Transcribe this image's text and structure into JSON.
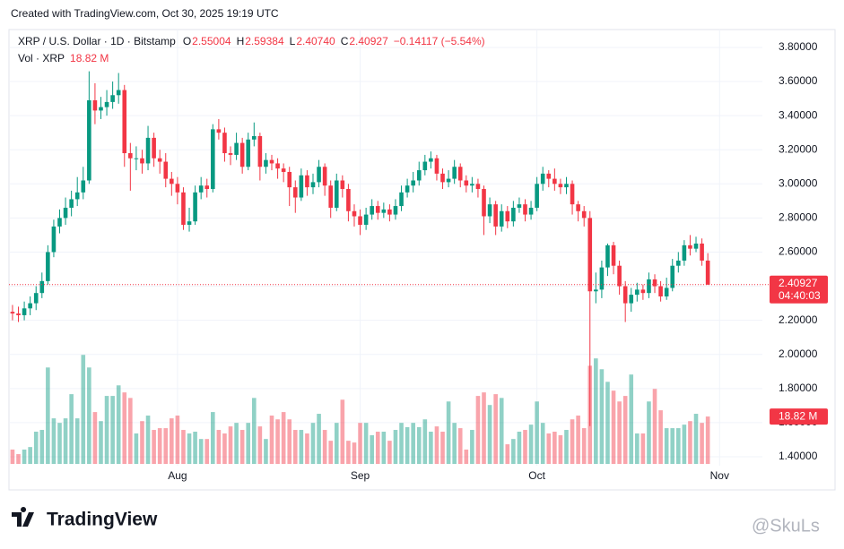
{
  "chart_data": {
    "type": "candlestick",
    "created": "Created with TradingView.com, Oct 30, 2025 19:19 UTC",
    "title": "XRP / U.S. Dollar · 1D · Bitstamp",
    "ohlc_labels": [
      {
        "key": "O",
        "value": "2.55004"
      },
      {
        "key": "H",
        "value": "2.59384"
      },
      {
        "key": "L",
        "value": "2.40740"
      },
      {
        "key": "C",
        "value": "2.40927"
      }
    ],
    "change": "−0.14117 (−5.54%)",
    "volume_title": "Vol · XRP",
    "volume_label": "18.82 M",
    "price_label": "2.40927",
    "countdown": "04:40:03",
    "brand": "TradingView",
    "watermark": "@SkuLs",
    "up_color": "#089981",
    "down_color": "#f23645",
    "grid": true,
    "ylim": [
      1.358,
      3.868
    ],
    "yticks": [
      {
        "value": 1.4,
        "label": "1.40000"
      },
      {
        "value": 1.6,
        "label": "1.60000"
      },
      {
        "value": 1.8,
        "label": "1.80000"
      },
      {
        "value": 2.0,
        "label": "2.00000"
      },
      {
        "value": 2.2,
        "label": "2.20000"
      },
      {
        "value": 2.4,
        "label": "2.40000"
      },
      {
        "value": 2.6,
        "label": "2.60000"
      },
      {
        "value": 2.8,
        "label": "2.80000"
      },
      {
        "value": 3.0,
        "label": "3.00000"
      },
      {
        "value": 3.2,
        "label": "3.20000"
      },
      {
        "value": 3.4,
        "label": "3.40000"
      },
      {
        "value": 3.6,
        "label": "3.60000"
      },
      {
        "value": 3.8,
        "label": "3.80000"
      }
    ],
    "xlim": [
      -0.6,
      126.5
    ],
    "xticks": [
      {
        "value": 28,
        "label": "Aug"
      },
      {
        "value": 59,
        "label": "Sep"
      },
      {
        "value": 89,
        "label": "Oct"
      },
      {
        "value": 120,
        "label": "Nov"
      }
    ],
    "vol_ylim": [
      0,
      170
    ],
    "open": [
      2.25,
      2.24,
      2.23,
      2.27,
      2.3,
      2.36,
      2.43,
      2.6,
      2.75,
      2.8,
      2.86,
      2.91,
      2.95,
      3.02,
      3.49,
      3.43,
      3.45,
      3.48,
      3.52,
      3.55,
      3.18,
      3.15,
      3.15,
      3.12,
      3.27,
      3.15,
      3.13,
      3.03,
      3.0,
      2.95,
      2.76,
      2.78,
      2.95,
      2.99,
      2.97,
      3.32,
      3.3,
      3.18,
      3.17,
      3.24,
      3.1,
      3.26,
      3.28,
      3.1,
      3.14,
      3.12,
      3.09,
      3.07,
      2.98,
      2.92,
      3.05,
      2.98,
      3.01,
      3.1,
      2.99,
      2.86,
      3.02,
      2.97,
      2.84,
      2.81,
      2.76,
      2.82,
      2.87,
      2.83,
      2.85,
      2.82,
      2.87,
      2.95,
      2.99,
      3.02,
      3.08,
      3.13,
      3.15,
      3.06,
      3.01,
      3.03,
      3.1,
      3.02,
      2.99,
      3.0,
      2.97,
      2.81,
      2.88,
      2.75,
      2.84,
      2.78,
      2.86,
      2.88,
      2.82,
      2.86,
      3.0,
      3.06,
      3.03,
      3.0,
      2.98,
      3.0,
      2.88,
      2.84,
      2.8,
      2.37,
      2.38,
      2.51,
      2.64,
      2.52,
      2.4,
      2.3,
      2.35,
      2.38,
      2.36,
      2.44,
      2.4,
      2.34,
      2.39,
      2.52,
      2.55,
      2.64,
      2.62,
      2.65,
      2.55004
    ],
    "high": [
      2.29,
      2.28,
      2.31,
      2.34,
      2.4,
      2.48,
      2.64,
      2.79,
      2.85,
      2.92,
      2.96,
      3.04,
      3.1,
      3.66,
      3.59,
      3.51,
      3.55,
      3.6,
      3.65,
      3.58,
      3.24,
      3.22,
      3.2,
      3.34,
      3.3,
      3.2,
      3.18,
      3.07,
      3.04,
      2.98,
      2.86,
      2.99,
      3.04,
      3.03,
      3.35,
      3.38,
      3.33,
      3.22,
      3.3,
      3.27,
      3.3,
      3.36,
      3.3,
      3.18,
      3.17,
      3.15,
      3.12,
      3.1,
      3.02,
      3.09,
      3.08,
      3.06,
      3.14,
      3.12,
      3.02,
      3.06,
      3.05,
      3.0,
      2.88,
      2.85,
      2.86,
      2.91,
      2.9,
      2.89,
      2.88,
      2.91,
      2.99,
      3.03,
      3.07,
      3.13,
      3.17,
      3.19,
      3.17,
      3.09,
      3.08,
      3.14,
      3.12,
      3.05,
      3.04,
      3.03,
      2.99,
      2.92,
      2.9,
      2.88,
      2.87,
      2.9,
      2.92,
      2.91,
      2.9,
      3.04,
      3.1,
      3.08,
      3.09,
      3.03,
      3.04,
      3.02,
      2.9,
      2.87,
      2.84,
      2.48,
      2.55,
      2.65,
      2.66,
      2.55,
      2.43,
      2.39,
      2.42,
      2.41,
      2.48,
      2.47,
      2.43,
      2.45,
      2.56,
      2.6,
      2.67,
      2.7,
      2.69,
      2.68,
      2.59384
    ],
    "low": [
      2.2,
      2.19,
      2.2,
      2.23,
      2.26,
      2.33,
      2.41,
      2.57,
      2.71,
      2.76,
      2.81,
      2.87,
      2.91,
      3.0,
      3.35,
      3.38,
      3.4,
      3.44,
      3.47,
      3.1,
      2.96,
      3.08,
      3.06,
      3.08,
      3.1,
      3.06,
      2.98,
      2.93,
      2.88,
      2.73,
      2.72,
      2.76,
      2.91,
      2.92,
      2.95,
      3.26,
      3.13,
      3.11,
      3.14,
      3.06,
      3.08,
      3.22,
      3.02,
      3.06,
      3.08,
      3.03,
      3.01,
      2.87,
      2.83,
      2.9,
      2.93,
      2.94,
      2.98,
      2.93,
      2.8,
      2.84,
      2.92,
      2.78,
      2.75,
      2.7,
      2.73,
      2.79,
      2.79,
      2.8,
      2.78,
      2.79,
      2.84,
      2.92,
      2.95,
      2.99,
      3.05,
      3.09,
      3.02,
      2.97,
      2.98,
      3.0,
      2.98,
      2.95,
      2.95,
      2.92,
      2.7,
      2.77,
      2.7,
      2.72,
      2.74,
      2.75,
      2.83,
      2.78,
      2.79,
      2.84,
      2.96,
      2.98,
      2.96,
      2.94,
      2.94,
      2.82,
      2.78,
      2.75,
      1.58,
      2.3,
      2.33,
      2.46,
      2.47,
      2.35,
      2.19,
      2.25,
      2.31,
      2.32,
      2.33,
      2.36,
      2.31,
      2.32,
      2.37,
      2.48,
      2.52,
      2.58,
      2.6,
      2.52,
      2.4074
    ],
    "close": [
      2.24,
      2.23,
      2.27,
      2.3,
      2.36,
      2.43,
      2.6,
      2.75,
      2.8,
      2.86,
      2.91,
      2.95,
      3.02,
      3.49,
      3.43,
      3.45,
      3.48,
      3.52,
      3.55,
      3.18,
      3.15,
      3.15,
      3.12,
      3.27,
      3.15,
      3.13,
      3.03,
      3.0,
      2.95,
      2.76,
      2.78,
      2.95,
      2.99,
      2.97,
      3.32,
      3.3,
      3.18,
      3.17,
      3.24,
      3.1,
      3.26,
      3.28,
      3.1,
      3.14,
      3.12,
      3.09,
      3.07,
      2.98,
      2.92,
      3.05,
      2.98,
      3.01,
      3.1,
      2.99,
      2.86,
      3.02,
      2.97,
      2.84,
      2.81,
      2.76,
      2.82,
      2.87,
      2.83,
      2.85,
      2.82,
      2.87,
      2.95,
      2.99,
      3.02,
      3.08,
      3.13,
      3.15,
      3.06,
      3.01,
      3.03,
      3.1,
      3.02,
      2.99,
      3.0,
      2.97,
      2.81,
      2.88,
      2.75,
      2.84,
      2.78,
      2.86,
      2.88,
      2.82,
      2.86,
      3.0,
      3.06,
      3.03,
      3.0,
      2.98,
      3.0,
      2.88,
      2.84,
      2.8,
      2.37,
      2.38,
      2.51,
      2.64,
      2.52,
      2.4,
      2.3,
      2.35,
      2.38,
      2.36,
      2.44,
      2.4,
      2.34,
      2.39,
      2.52,
      2.55,
      2.64,
      2.62,
      2.65,
      2.55004,
      2.40927
    ],
    "volume": [
      5.7,
      3.9,
      5.7,
      6.7,
      12.8,
      13.5,
      38.3,
      18.1,
      16.3,
      18.1,
      27.7,
      18.1,
      43.3,
      38.3,
      20.6,
      17.0,
      27.0,
      27.0,
      31.2,
      28.4,
      26.2,
      12.1,
      17.0,
      19.2,
      13.5,
      14.2,
      14.2,
      18.1,
      19.2,
      13.5,
      12.1,
      12.8,
      9.9,
      9.9,
      20.6,
      13.5,
      12.1,
      14.9,
      16.3,
      13.5,
      16.3,
      26.2,
      14.9,
      9.9,
      19.2,
      17.7,
      20.6,
      17.7,
      13.5,
      13.5,
      12.1,
      16.3,
      19.9,
      13.5,
      9.2,
      16.3,
      25.5,
      9.2,
      8.5,
      16.3,
      16.3,
      11.4,
      12.8,
      12.8,
      9.2,
      13.5,
      16.3,
      14.6,
      16.3,
      14.6,
      17.7,
      12.8,
      14.9,
      12.8,
      24.8,
      16.3,
      14.2,
      5.7,
      13.5,
      27.0,
      28.4,
      23.4,
      27.7,
      26.2,
      7.8,
      9.9,
      12.8,
      13.5,
      15.6,
      24.8,
      16.3,
      12.1,
      12.8,
      11.4,
      13.5,
      17.7,
      19.2,
      14.2,
      39.0,
      41.9,
      37.6,
      32.6,
      29.1,
      24.8,
      27.0,
      35.5,
      12.1,
      12.1,
      24.8,
      29.8,
      21.3,
      14.2,
      14.2,
      14.2,
      15.6,
      17.0,
      19.9,
      16.3,
      18.82
    ]
  }
}
